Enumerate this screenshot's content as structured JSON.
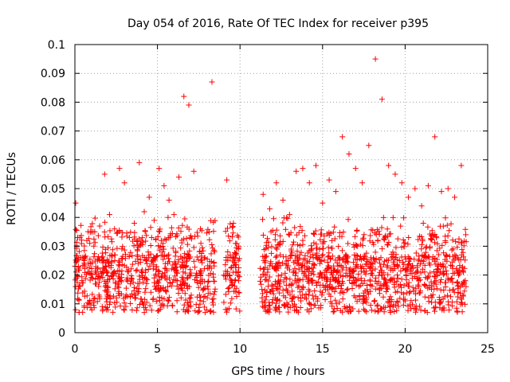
{
  "chart_data": {
    "type": "scatter",
    "title": "Day 054 of 2016, Rate Of TEC Index for receiver p395",
    "xlabel": "GPS time / hours",
    "ylabel": "ROTI / TECUs",
    "xlim": [
      0,
      25
    ],
    "ylim": [
      0,
      0.1
    ],
    "xticks": [
      0,
      5,
      10,
      15,
      20,
      25
    ],
    "xtick_labels": [
      "0",
      "5",
      "10",
      "15",
      "20",
      "25"
    ],
    "yticks": [
      0,
      0.01,
      0.02,
      0.03,
      0.04,
      0.05,
      0.06,
      0.07,
      0.08,
      0.09,
      0.1
    ],
    "ytick_labels": [
      "0",
      "0.01",
      "0.02",
      "0.03",
      "0.04",
      "0.05",
      "0.06",
      "0.07",
      "0.08",
      "0.09",
      "0.1"
    ],
    "grid": true,
    "marker": "plus",
    "color": "#ff0000",
    "series": [
      {
        "name": "ROTI",
        "x": [
          0.05,
          0.3,
          0.6,
          0.9,
          1.2,
          1.5,
          1.8,
          2.1,
          2.4,
          2.7,
          3.0,
          3.3,
          3.6,
          3.9,
          4.2,
          4.5,
          4.8,
          5.1,
          5.4,
          5.7,
          6.0,
          6.3,
          6.6,
          6.9,
          7.2,
          7.6,
          8.3,
          9.2,
          9.6,
          9.9,
          11.4,
          11.8,
          12.2,
          12.6,
          13.0,
          13.4,
          13.8,
          14.2,
          14.6,
          15.0,
          15.4,
          15.8,
          16.2,
          16.6,
          17.0,
          17.4,
          17.8,
          18.2,
          18.6,
          19.0,
          19.4,
          19.8,
          20.2,
          20.6,
          21.0,
          21.4,
          21.8,
          22.2,
          22.6,
          23.0,
          23.4
        ],
        "y": [
          0.045,
          0.033,
          0.026,
          0.031,
          0.035,
          0.037,
          0.055,
          0.041,
          0.036,
          0.057,
          0.052,
          0.033,
          0.038,
          0.059,
          0.042,
          0.047,
          0.039,
          0.057,
          0.051,
          0.046,
          0.041,
          0.054,
          0.082,
          0.079,
          0.056,
          0.036,
          0.087,
          0.053,
          0.038,
          0.029,
          0.048,
          0.043,
          0.052,
          0.046,
          0.041,
          0.056,
          0.057,
          0.052,
          0.058,
          0.045,
          0.053,
          0.049,
          0.068,
          0.062,
          0.057,
          0.052,
          0.065,
          0.095,
          0.081,
          0.058,
          0.055,
          0.052,
          0.047,
          0.05,
          0.044,
          0.051,
          0.068,
          0.049,
          0.05,
          0.047,
          0.058
        ]
      }
    ],
    "density": {
      "segments": [
        [
          0.0,
          7.1
        ],
        [
          7.2,
          7.9
        ],
        [
          7.95,
          8.5
        ],
        [
          9.0,
          10.0
        ],
        [
          11.2,
          23.7
        ]
      ],
      "baseline_low": 0.003,
      "baseline_mid": 0.016,
      "upper_envelope": 0.04
    }
  }
}
